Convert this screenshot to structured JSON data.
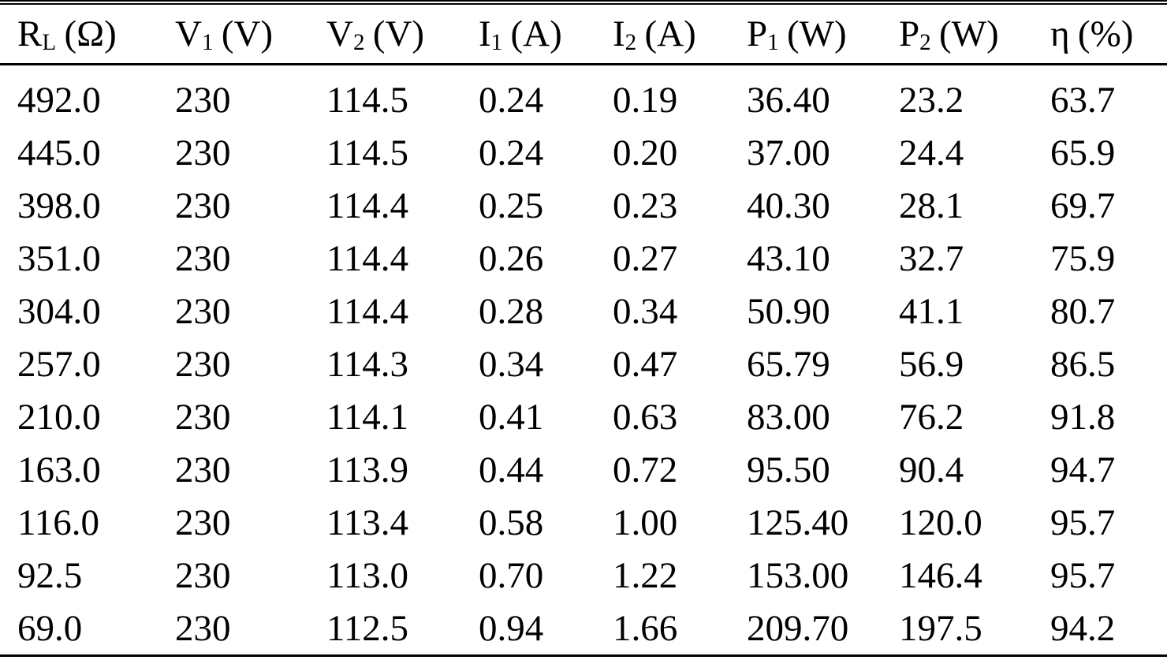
{
  "colors": {
    "text": "#000000",
    "background": "#ffffff",
    "rule": "#000000"
  },
  "table": {
    "columns": [
      {
        "base": "R",
        "sub": "L",
        "unit": "(Ω)"
      },
      {
        "base": "V",
        "sub": "1",
        "unit": "(V)"
      },
      {
        "base": "V",
        "sub": "2",
        "unit": "(V)"
      },
      {
        "base": "I",
        "sub": "1",
        "unit": "(A)"
      },
      {
        "base": "I",
        "sub": "2",
        "unit": "(A)"
      },
      {
        "base": "P",
        "sub": "1",
        "unit": "(W)"
      },
      {
        "base": "P",
        "sub": "2",
        "unit": "(W)"
      },
      {
        "base": "η",
        "sub": "",
        "unit": "(%)"
      }
    ],
    "rows": [
      [
        "492.0",
        "230",
        "114.5",
        "0.24",
        "0.19",
        "36.40",
        "23.2",
        "63.7"
      ],
      [
        "445.0",
        "230",
        "114.5",
        "0.24",
        "0.20",
        "37.00",
        "24.4",
        "65.9"
      ],
      [
        "398.0",
        "230",
        "114.4",
        "0.25",
        "0.23",
        "40.30",
        "28.1",
        "69.7"
      ],
      [
        "351.0",
        "230",
        "114.4",
        "0.26",
        "0.27",
        "43.10",
        "32.7",
        "75.9"
      ],
      [
        "304.0",
        "230",
        "114.4",
        "0.28",
        "0.34",
        "50.90",
        "41.1",
        "80.7"
      ],
      [
        "257.0",
        "230",
        "114.3",
        "0.34",
        "0.47",
        "65.79",
        "56.9",
        "86.5"
      ],
      [
        "210.0",
        "230",
        "114.1",
        "0.41",
        "0.63",
        "83.00",
        "76.2",
        "91.8"
      ],
      [
        "163.0",
        "230",
        "113.9",
        "0.44",
        "0.72",
        "95.50",
        "90.4",
        "94.7"
      ],
      [
        "116.0",
        "230",
        "113.4",
        "0.58",
        "1.00",
        "125.40",
        "120.0",
        "95.7"
      ],
      [
        "92.5",
        "230",
        "113.0",
        "0.70",
        "1.22",
        "153.00",
        "146.4",
        "95.7"
      ],
      [
        "69.0",
        "230",
        "112.5",
        "0.94",
        "1.66",
        "209.70",
        "197.5",
        "94.2"
      ]
    ]
  },
  "chart_data": {
    "type": "table",
    "columns": [
      "R_L (Ω)",
      "V_1 (V)",
      "V_2 (V)",
      "I_1 (A)",
      "I_2 (A)",
      "P_1 (W)",
      "P_2 (W)",
      "η (%)"
    ],
    "rows": [
      [
        492.0,
        230,
        114.5,
        0.24,
        0.19,
        36.4,
        23.2,
        63.7
      ],
      [
        445.0,
        230,
        114.5,
        0.24,
        0.2,
        37.0,
        24.4,
        65.9
      ],
      [
        398.0,
        230,
        114.4,
        0.25,
        0.23,
        40.3,
        28.1,
        69.7
      ],
      [
        351.0,
        230,
        114.4,
        0.26,
        0.27,
        43.1,
        32.7,
        75.9
      ],
      [
        304.0,
        230,
        114.4,
        0.28,
        0.34,
        50.9,
        41.1,
        80.7
      ],
      [
        257.0,
        230,
        114.3,
        0.34,
        0.47,
        65.79,
        56.9,
        86.5
      ],
      [
        210.0,
        230,
        114.1,
        0.41,
        0.63,
        83.0,
        76.2,
        91.8
      ],
      [
        163.0,
        230,
        113.9,
        0.44,
        0.72,
        95.5,
        90.4,
        94.7
      ],
      [
        116.0,
        230,
        113.4,
        0.58,
        1.0,
        125.4,
        120.0,
        95.7
      ],
      [
        92.5,
        230,
        113.0,
        0.7,
        1.22,
        153.0,
        146.4,
        95.7
      ],
      [
        69.0,
        230,
        112.5,
        0.94,
        1.66,
        209.7,
        197.5,
        94.2
      ]
    ]
  }
}
